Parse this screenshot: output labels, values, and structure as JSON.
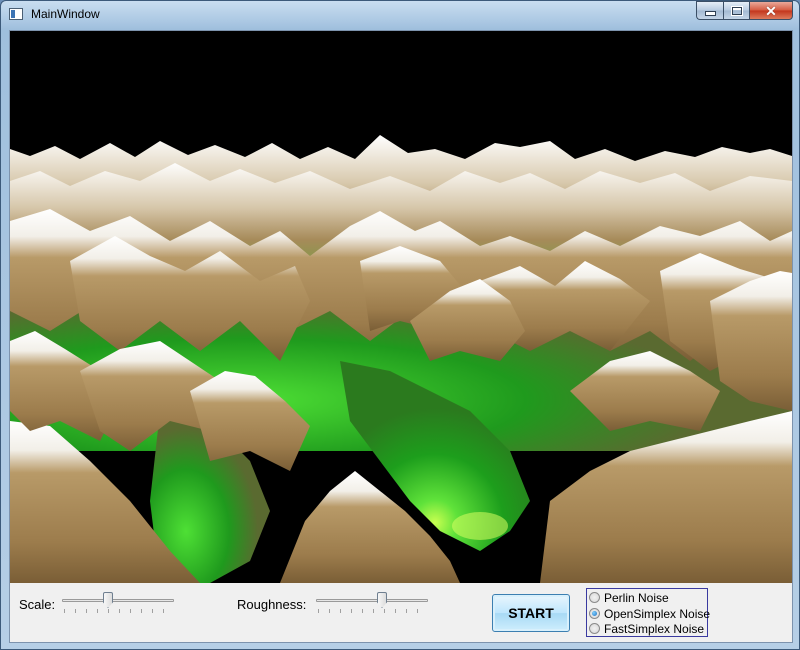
{
  "window": {
    "title": "MainWindow"
  },
  "scene": {
    "name": "terrain-render"
  },
  "controls": {
    "scale": {
      "label": "Scale:",
      "value": 0.4,
      "ticks": 11
    },
    "roughness": {
      "label": "Roughness:",
      "value": 0.6,
      "ticks": 11
    },
    "start_label": "START",
    "noise_options": [
      {
        "label": "Perlin Noise",
        "selected": false
      },
      {
        "label": "OpenSimplex Noise",
        "selected": true
      },
      {
        "label": "FastSimplex Noise",
        "selected": false
      }
    ]
  },
  "colors": {
    "snow": "#ffffff",
    "rock": "#a88a5a",
    "grass": "#2ec02a",
    "sky": "#000000"
  }
}
